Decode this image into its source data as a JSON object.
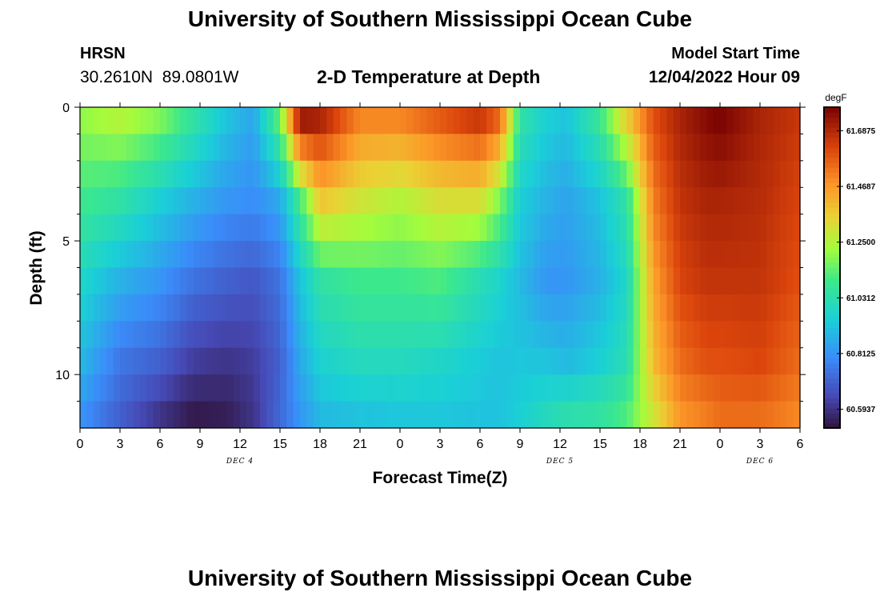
{
  "header": {
    "title": "University of Southern Mississippi Ocean Cube",
    "station": "HRSN",
    "coordinates": "30.2610N  89.0801W",
    "subtitle": "2-D Temperature at Depth",
    "model_start_label": "Model Start Time",
    "model_start_value": "12/04/2022 Hour 09"
  },
  "footer": {
    "title": "University of Southern Mississippi Ocean Cube"
  },
  "chart_data": {
    "type": "heatmap",
    "title": "2-D Temperature at Depth",
    "xlabel": "Forecast Time(Z)",
    "ylabel": "Depth (ft)",
    "xlim": [
      0,
      54
    ],
    "ylim": [
      12,
      0
    ],
    "x_ticks": [
      {
        "x": 0,
        "label": "0"
      },
      {
        "x": 3,
        "label": "3"
      },
      {
        "x": 6,
        "label": "6"
      },
      {
        "x": 9,
        "label": "9"
      },
      {
        "x": 12,
        "label": "12"
      },
      {
        "x": 15,
        "label": "15"
      },
      {
        "x": 18,
        "label": "18"
      },
      {
        "x": 21,
        "label": "21"
      },
      {
        "x": 24,
        "label": "0"
      },
      {
        "x": 27,
        "label": "3"
      },
      {
        "x": 30,
        "label": "6"
      },
      {
        "x": 33,
        "label": "9"
      },
      {
        "x": 36,
        "label": "12"
      },
      {
        "x": 39,
        "label": "15"
      },
      {
        "x": 42,
        "label": "18"
      },
      {
        "x": 45,
        "label": "21"
      },
      {
        "x": 48,
        "label": "0"
      },
      {
        "x": 51,
        "label": "3"
      },
      {
        "x": 54,
        "label": "6"
      }
    ],
    "date_labels": [
      {
        "x": 12,
        "label": "DEC 4"
      },
      {
        "x": 36,
        "label": "DEC 5"
      },
      {
        "x": 51,
        "label": "DEC 6"
      }
    ],
    "y_ticks": [
      {
        "y": 0,
        "label": "0"
      },
      {
        "y": 5,
        "label": "5"
      },
      {
        "y": 10,
        "label": "10"
      }
    ],
    "depth_levels": 12,
    "colorbar": {
      "unit": "degF",
      "min": 60.52,
      "max": 61.78,
      "ticks": [
        "61.6875",
        "61.4687",
        "61.2500",
        "61.0312",
        "60.8125",
        "60.5937"
      ],
      "tick_values": [
        61.6875,
        61.46875,
        61.25,
        61.03125,
        60.8125,
        60.59375
      ]
    },
    "anchors": {
      "times": [
        0,
        3,
        6,
        8.5,
        11,
        13,
        15,
        16.5,
        18,
        21,
        24,
        27,
        30,
        31.5,
        33,
        35,
        36.5,
        39,
        41,
        43,
        45,
        47,
        48,
        51,
        54
      ],
      "depths": [
        0.5,
        3.5,
        6.5,
        9.5,
        11.5
      ],
      "temps": [
        [
          61.2,
          61.1,
          60.98,
          60.9,
          60.82
        ],
        [
          61.25,
          61.05,
          60.88,
          60.75,
          60.7
        ],
        [
          61.18,
          60.95,
          60.82,
          60.7,
          60.6
        ],
        [
          61.05,
          60.88,
          60.74,
          60.62,
          60.54
        ],
        [
          60.92,
          60.82,
          60.7,
          60.6,
          60.55
        ],
        [
          60.85,
          60.8,
          60.68,
          60.62,
          60.6
        ],
        [
          61.15,
          60.86,
          60.74,
          60.7,
          60.72
        ],
        [
          61.72,
          61.1,
          60.92,
          60.86,
          60.82
        ],
        [
          61.7,
          61.38,
          61.05,
          60.96,
          60.9
        ],
        [
          61.5,
          61.3,
          61.1,
          61.0,
          60.92
        ],
        [
          61.5,
          61.25,
          61.1,
          61.0,
          60.93
        ],
        [
          61.58,
          61.32,
          61.12,
          60.98,
          60.93
        ],
        [
          61.65,
          61.32,
          61.02,
          60.94,
          60.92
        ],
        [
          61.55,
          61.18,
          60.97,
          60.92,
          60.92
        ],
        [
          61.05,
          60.95,
          60.9,
          60.93,
          60.95
        ],
        [
          60.95,
          60.88,
          60.82,
          60.92,
          61.0
        ],
        [
          60.92,
          60.85,
          60.82,
          60.9,
          61.03
        ],
        [
          61.08,
          60.92,
          60.88,
          60.95,
          61.05
        ],
        [
          61.35,
          61.05,
          60.98,
          61.02,
          61.12
        ],
        [
          61.6,
          61.52,
          61.45,
          61.4,
          61.3
        ],
        [
          61.7,
          61.66,
          61.62,
          61.55,
          61.48
        ],
        [
          61.76,
          61.7,
          61.66,
          61.6,
          61.52
        ],
        [
          61.78,
          61.7,
          61.66,
          61.6,
          61.55
        ],
        [
          61.7,
          61.68,
          61.66,
          61.62,
          61.55
        ],
        [
          61.65,
          61.62,
          61.6,
          61.55,
          61.5
        ]
      ]
    }
  }
}
